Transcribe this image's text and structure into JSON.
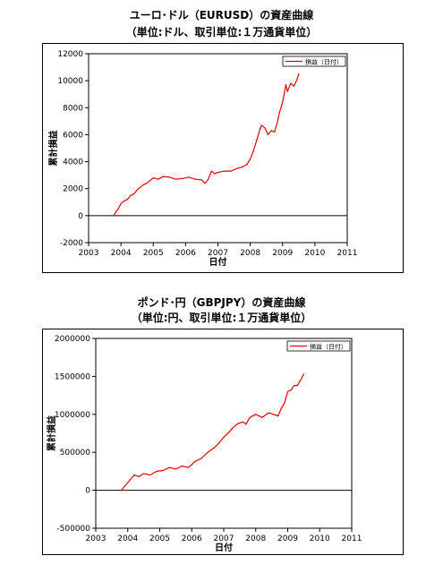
{
  "chart_data": [
    {
      "type": "line",
      "title": "ユーロ･ドル（EURUSD）の資産曲線",
      "subtitle": "（単位:ドル、取引単位:１万通貨単位）",
      "xlabel": "日付",
      "ylabel": "累計損益",
      "legend": "top-right",
      "xlim": [
        2003,
        2011
      ],
      "ylim": [
        -2000,
        12000
      ],
      "x_ticks": [
        "2003",
        "2004",
        "2005",
        "2006",
        "2007",
        "2008",
        "2009",
        "2010",
        "2011"
      ],
      "y_ticks": [
        "-2000",
        "0",
        "2000",
        "4000",
        "6000",
        "8000",
        "10000",
        "12000"
      ],
      "line_color": "#e00000",
      "series": [
        {
          "name": "損益（日付）",
          "x": [
            2003.78,
            2003.85,
            2003.92,
            2004.0,
            2004.1,
            2004.2,
            2004.3,
            2004.4,
            2004.5,
            2004.6,
            2004.7,
            2004.8,
            2004.9,
            2005.0,
            2005.15,
            2005.3,
            2005.5,
            2005.7,
            2005.9,
            2006.1,
            2006.3,
            2006.5,
            2006.6,
            2006.7,
            2006.8,
            2006.9,
            2007.0,
            2007.2,
            2007.4,
            2007.6,
            2007.75,
            2007.9,
            2008.0,
            2008.1,
            2008.2,
            2008.3,
            2008.35,
            2008.45,
            2008.55,
            2008.65,
            2008.75,
            2008.85,
            2008.9,
            2009.0,
            2009.1,
            2009.15,
            2009.25,
            2009.35,
            2009.45,
            2009.5
          ],
          "y": [
            0,
            300,
            500,
            900,
            1100,
            1200,
            1500,
            1600,
            1900,
            2100,
            2300,
            2400,
            2600,
            2800,
            2700,
            2900,
            2850,
            2700,
            2750,
            2850,
            2700,
            2650,
            2400,
            2700,
            3300,
            3100,
            3200,
            3300,
            3300,
            3500,
            3600,
            3800,
            4200,
            4800,
            5600,
            6400,
            6700,
            6500,
            6000,
            6300,
            6200,
            7000,
            7600,
            8400,
            9700,
            9200,
            9800,
            9600,
            10100,
            10500
          ]
        }
      ]
    },
    {
      "type": "line",
      "title": "ポンド･円（GBPJPY）の資産曲線",
      "subtitle": "（単位:円、取引単位:１万通貨単位）",
      "xlabel": "日付",
      "ylabel": "累計損益",
      "legend": "top-right",
      "xlim": [
        2003,
        2011
      ],
      "ylim": [
        -500000,
        2000000
      ],
      "x_ticks": [
        "2003",
        "2004",
        "2005",
        "2006",
        "2007",
        "2008",
        "2009",
        "2010",
        "2011"
      ],
      "y_ticks": [
        "-500000",
        "0",
        "500000",
        "1000000",
        "1500000",
        "2000000"
      ],
      "line_color": "#e00000",
      "series": [
        {
          "name": "損益（日付）",
          "x": [
            2003.8,
            2003.9,
            2004.0,
            2004.1,
            2004.2,
            2004.35,
            2004.5,
            2004.7,
            2004.9,
            2005.1,
            2005.3,
            2005.5,
            2005.7,
            2005.9,
            2006.1,
            2006.3,
            2006.5,
            2006.7,
            2006.85,
            2007.0,
            2007.15,
            2007.3,
            2007.45,
            2007.6,
            2007.7,
            2007.8,
            2007.9,
            2008.0,
            2008.2,
            2008.4,
            2008.55,
            2008.7,
            2008.8,
            2008.9,
            2009.0,
            2009.1,
            2009.2,
            2009.3,
            2009.4,
            2009.5
          ],
          "y": [
            0,
            50000,
            100000,
            150000,
            200000,
            180000,
            220000,
            200000,
            250000,
            260000,
            300000,
            280000,
            320000,
            300000,
            380000,
            420000,
            500000,
            560000,
            620000,
            700000,
            760000,
            830000,
            880000,
            900000,
            870000,
            950000,
            980000,
            1000000,
            960000,
            1020000,
            1000000,
            980000,
            1080000,
            1150000,
            1300000,
            1320000,
            1380000,
            1380000,
            1450000,
            1530000
          ]
        }
      ]
    }
  ]
}
